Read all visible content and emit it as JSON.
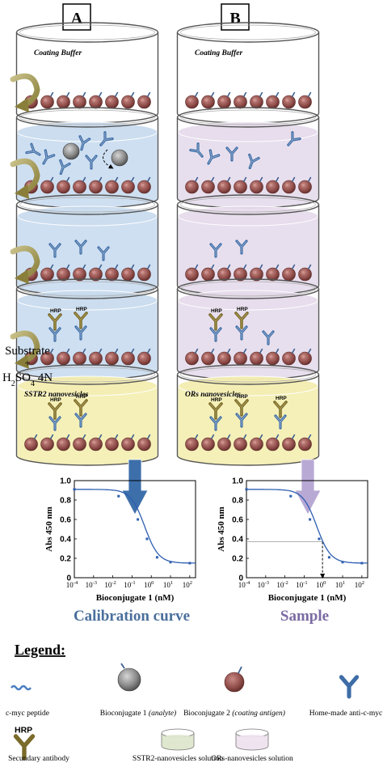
{
  "panels": [
    {
      "letter": "A",
      "buffer_label": "Coating Buffer",
      "nanovesicle_label": "SSTR2 nanovesicles",
      "caption": "Calibration curve",
      "liquid_color": "#c9dcef",
      "final_color": "#f4eeb0",
      "arrow_color": "#3d6fab"
    },
    {
      "letter": "B",
      "buffer_label": "Coating Buffer",
      "nanovesicle_label": "ORs nanovesicles",
      "caption": "Sample",
      "liquid_color": "#e6dcec",
      "final_color": "#f4eeb0",
      "arrow_color": "#b8a9d4"
    }
  ],
  "side_note": {
    "line1": "Substrate",
    "line2": "+",
    "line3_main": "H",
    "line3_sub": "2",
    "line3_mid": "SO",
    "line3_sub2": "4",
    "line3_end": " 4N"
  },
  "hrp_label": "HRP",
  "chart_data": [
    {
      "type": "line",
      "title": "",
      "xlabel": "Bioconjugate 1 (nM)",
      "ylabel": "Abs 450 nm",
      "xscale": "log",
      "xlim": [
        0.0001,
        200
      ],
      "ylim": [
        0,
        1.0
      ],
      "xticks": [
        "10^-4",
        "10^-3",
        "10^-2",
        "10^-1",
        "10^0",
        "10^1",
        "10^2"
      ],
      "yticks": [
        "0",
        "0.2",
        "0.4",
        "0.6",
        "0.8",
        "1.0"
      ],
      "series": [
        {
          "x": [
            0.0001,
            0.02,
            0.2,
            0.6,
            2,
            10,
            100
          ],
          "y": [
            0.91,
            0.84,
            0.6,
            0.4,
            0.21,
            0.16,
            0.15
          ]
        }
      ]
    },
    {
      "type": "line",
      "title": "",
      "xlabel": "Bioconjugate 1 (nM)",
      "ylabel": "Abs 450 nm",
      "xscale": "log",
      "xlim": [
        0.0001,
        200
      ],
      "ylim": [
        0,
        1.0
      ],
      "xticks": [
        "10^-4",
        "10^-3",
        "10^-2",
        "10^-1",
        "10^0",
        "10^1",
        "10^2"
      ],
      "yticks": [
        "0",
        "0.2",
        "0.4",
        "0.6",
        "0.8",
        "1.0"
      ],
      "series": [
        {
          "x": [
            0.0001,
            0.02,
            0.2,
            0.6,
            2,
            10,
            100
          ],
          "y": [
            0.91,
            0.84,
            0.6,
            0.4,
            0.21,
            0.16,
            0.15
          ]
        }
      ],
      "reference_y": 0.37,
      "reference_x": 0.9
    }
  ],
  "legend": {
    "title": "Legend:",
    "items": [
      {
        "label": "c-myc peptide",
        "italic": ""
      },
      {
        "label": "Bioconjugate 1 ",
        "italic": "(analyte)"
      },
      {
        "label": "Bioconjugate 2 ",
        "italic": "(coating antigen)"
      },
      {
        "label": "Home-made anti-c-myc",
        "italic": ""
      },
      {
        "label": "Secundary antibody",
        "italic": ""
      },
      {
        "label": "SSTR2-nanovesicles solution",
        "italic": ""
      },
      {
        "label": "ORs-nanovesicles solution",
        "italic": ""
      }
    ]
  }
}
